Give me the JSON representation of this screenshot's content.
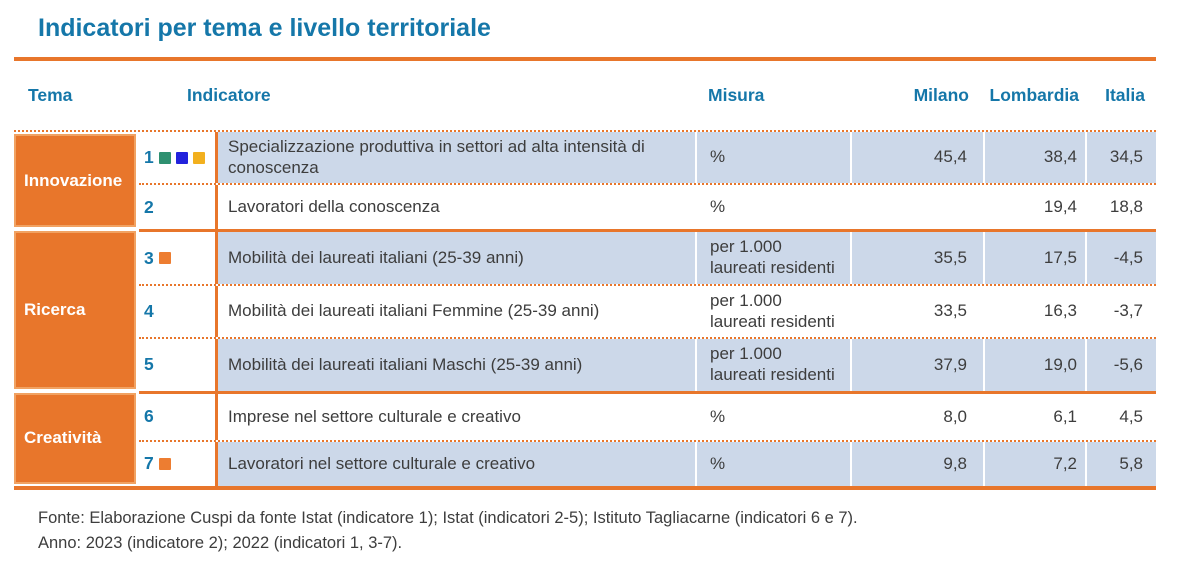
{
  "title": "Indicatori per tema e livello territoriale",
  "colors": {
    "accent_orange": "#E8762B",
    "tema_cell_border": "#F1A262",
    "row_shade_blue": "#CCD8E9",
    "heading_blue": "#1577A9",
    "body_text": "#3d3d3d",
    "markers": {
      "green": "#2E9070",
      "blue": "#2222DC",
      "yellow": "#F2B01E",
      "orange": "#ED7D31"
    }
  },
  "table": {
    "headers": {
      "tema": "Tema",
      "indicatore": "Indicatore",
      "misura": "Misura",
      "milano": "Milano",
      "lombardia": "Lombardia",
      "italia": "Italia"
    },
    "groups": [
      {
        "tema": "Innovazione",
        "rows": [
          {
            "num": "1",
            "markers": [
              "green",
              "blue",
              "yellow"
            ],
            "indicatore": "Specializzazione produttiva in settori ad alta intensità di conoscenza",
            "misura": "%",
            "milano": "45,4",
            "lombardia": "38,4",
            "italia": "34,5",
            "shaded": true
          },
          {
            "num": "2",
            "markers": [],
            "indicatore": "Lavoratori della conoscenza",
            "misura": "%",
            "milano": "",
            "lombardia": "19,4",
            "italia": "18,8",
            "shaded": false
          }
        ]
      },
      {
        "tema": "Ricerca",
        "rows": [
          {
            "num": "3",
            "markers": [
              "orange"
            ],
            "indicatore": "Mobilità dei laureati italiani (25-39 anni)",
            "misura": "per 1.000 laureati residenti",
            "milano": "35,5",
            "lombardia": "17,5",
            "italia": "-4,5",
            "shaded": true
          },
          {
            "num": "4",
            "markers": [],
            "indicatore": "Mobilità dei laureati italiani Femmine (25-39 anni)",
            "misura": "per 1.000 laureati residenti",
            "milano": "33,5",
            "lombardia": "16,3",
            "italia": "-3,7",
            "shaded": false
          },
          {
            "num": "5",
            "markers": [],
            "indicatore": "Mobilità dei laureati italiani Maschi (25-39 anni)",
            "misura": "per 1.000 laureati residenti",
            "milano": "37,9",
            "lombardia": "19,0",
            "italia": "-5,6",
            "shaded": true
          }
        ]
      },
      {
        "tema": "Creatività",
        "rows": [
          {
            "num": "6",
            "markers": [],
            "indicatore": "Imprese nel settore culturale e creativo",
            "misura": "%",
            "milano": "8,0",
            "lombardia": "6,1",
            "italia": "4,5",
            "shaded": false
          },
          {
            "num": "7",
            "markers": [
              "orange"
            ],
            "indicatore": "Lavoratori nel settore culturale e creativo",
            "misura": "%",
            "milano": "9,8",
            "lombardia": "7,2",
            "italia": "5,8",
            "shaded": true
          }
        ]
      }
    ]
  },
  "footer": {
    "fonte": "Fonte: Elaborazione Cuspi da fonte Istat (indicatore 1); Istat (indicatori 2-5); Istituto Tagliacarne (indicatori 6 e 7).",
    "anno": "Anno: 2023 (indicatore 2); 2022 (indicatori 1, 3-7)."
  },
  "chart_data": {
    "type": "table",
    "title": "Indicatori per tema e livello territoriale",
    "columns": [
      "Tema",
      "Indicatore",
      "Misura",
      "Milano",
      "Lombardia",
      "Italia"
    ],
    "rows": [
      [
        "Innovazione",
        "1 Specializzazione produttiva in settori ad alta intensità di conoscenza",
        "%",
        45.4,
        38.4,
        34.5
      ],
      [
        "Innovazione",
        "2 Lavoratori della conoscenza",
        "%",
        null,
        19.4,
        18.8
      ],
      [
        "Ricerca",
        "3 Mobilità dei laureati italiani (25-39 anni)",
        "per 1.000 laureati residenti",
        35.5,
        17.5,
        -4.5
      ],
      [
        "Ricerca",
        "4 Mobilità dei laureati italiani Femmine (25-39 anni)",
        "per 1.000 laureati residenti",
        33.5,
        16.3,
        -3.7
      ],
      [
        "Ricerca",
        "5 Mobilità dei laureati italiani Maschi (25-39 anni)",
        "per 1.000 laureati residenti",
        37.9,
        19.0,
        -5.6
      ],
      [
        "Creatività",
        "6 Imprese nel settore culturale e creativo",
        "%",
        8.0,
        6.1,
        4.5
      ],
      [
        "Creatività",
        "7 Lavoratori nel settore culturale e creativo",
        "%",
        9.8,
        7.2,
        5.8
      ]
    ],
    "notes": [
      "Fonte: Elaborazione Cuspi da fonte Istat (indicatore 1); Istat (indicatori 2-5); Istituto Tagliacarne (indicatori 6 e 7).",
      "Anno: 2023 (indicatore 2); 2022 (indicatori 1, 3-7)."
    ]
  }
}
